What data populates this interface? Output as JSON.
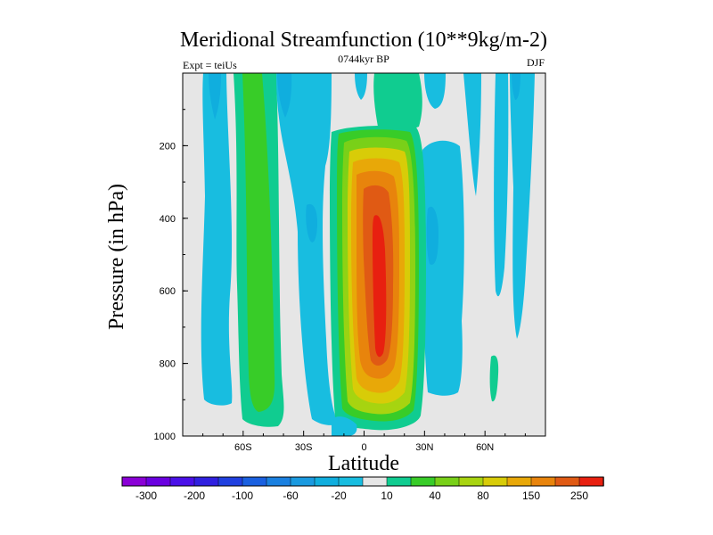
{
  "chart_data": {
    "type": "contour",
    "title": "Meridional Streamfunction (10**9kg/m-2)",
    "subtitle": "0744kyr BP",
    "left_annotation": "Expt = teiUs",
    "right_annotation": "DJF",
    "xlabel": "Latitude",
    "ylabel": "Pressure (in hPa)",
    "xlim": [
      -90,
      90
    ],
    "ylim": [
      0,
      1000
    ],
    "y_inverted": true,
    "x_ticks": [
      {
        "value": -60,
        "label": "60S"
      },
      {
        "value": -30,
        "label": "30S"
      },
      {
        "value": 0,
        "label": "0"
      },
      {
        "value": 30,
        "label": "30N"
      },
      {
        "value": 60,
        "label": "60N"
      }
    ],
    "y_ticks": [
      {
        "value": 200,
        "label": "200"
      },
      {
        "value": 400,
        "label": "400"
      },
      {
        "value": 600,
        "label": "600"
      },
      {
        "value": 800,
        "label": "800"
      },
      {
        "value": 1000,
        "label": "1000"
      }
    ],
    "colorbar": {
      "levels": [
        -300,
        -250,
        -200,
        -150,
        -100,
        -80,
        -60,
        -40,
        -20,
        -10,
        10,
        20,
        40,
        60,
        80,
        100,
        150,
        200,
        250,
        300
      ],
      "labels": [
        "-300",
        "-200",
        "-100",
        "-60",
        "-20",
        "10",
        "40",
        "80",
        "150",
        "250"
      ],
      "colors": [
        "#8a00d6",
        "#6a00e0",
        "#4a10e8",
        "#3020e0",
        "#2040e0",
        "#1a60e0",
        "#1a80e0",
        "#1a9ae0",
        "#10aede",
        "#18bde0",
        "#e6e6e6",
        "#10cc90",
        "#38cc28",
        "#78d018",
        "#a8d410",
        "#d8cc08",
        "#e8a808",
        "#e8840c",
        "#e05a14",
        "#e82010"
      ]
    },
    "features": [
      {
        "name": "Southern high-latitude negative cell",
        "lat_range": [
          -83,
          -73
        ],
        "p_range": [
          0,
          960
        ],
        "peak_value": -20
      },
      {
        "name": "Southern mid-latitude positive band",
        "lat_range": [
          -66,
          -50
        ],
        "p_range": [
          0,
          980
        ],
        "peak_value": 40
      },
      {
        "name": "Southern subtropical negative band",
        "lat_range": [
          -44,
          -20
        ],
        "p_range": [
          0,
          980
        ],
        "peak_value": -20
      },
      {
        "name": "Tropical Hadley cell (positive)",
        "lat_range": [
          -15,
          30
        ],
        "p_range": [
          150,
          980
        ],
        "peak_value": 290
      },
      {
        "name": "Northern subtropical negative cell",
        "lat_range": [
          30,
          50
        ],
        "p_range": [
          150,
          960
        ],
        "peak_value": -20
      },
      {
        "name": "Northern high-latitude negative band",
        "lat_range": [
          62,
          85
        ],
        "p_range": [
          0,
          950
        ],
        "peak_value": -20
      }
    ]
  }
}
